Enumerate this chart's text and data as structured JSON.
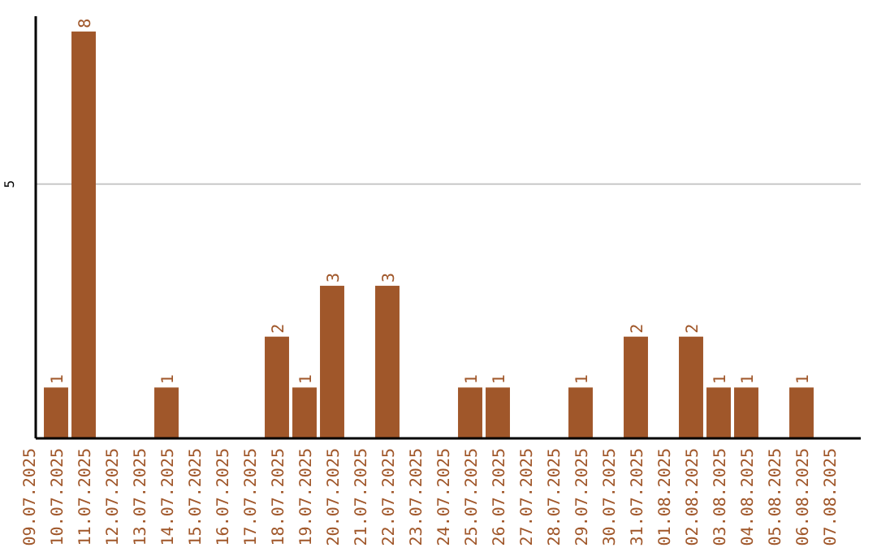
{
  "chart_data": {
    "type": "bar",
    "categories": [
      "09.07.2025",
      "10.07.2025",
      "11.07.2025",
      "12.07.2025",
      "13.07.2025",
      "14.07.2025",
      "15.07.2025",
      "16.07.2025",
      "17.07.2025",
      "18.07.2025",
      "19.07.2025",
      "20.07.2025",
      "21.07.2025",
      "22.07.2025",
      "23.07.2025",
      "24.07.2025",
      "25.07.2025",
      "26.07.2025",
      "27.07.2025",
      "28.07.2025",
      "29.07.2025",
      "30.07.2025",
      "31.07.2025",
      "01.08.2025",
      "02.08.2025",
      "03.08.2025",
      "04.08.2025",
      "05.08.2025",
      "06.08.2025",
      "07.08.2025"
    ],
    "values": [
      0,
      1,
      8,
      0,
      0,
      1,
      0,
      0,
      0,
      2,
      1,
      3,
      0,
      3,
      0,
      0,
      1,
      1,
      0,
      0,
      1,
      0,
      2,
      0,
      2,
      1,
      1,
      0,
      1,
      0
    ],
    "value_labels": [
      null,
      "1",
      "8",
      null,
      null,
      "1",
      null,
      null,
      null,
      "2",
      "1",
      "3",
      null,
      "3",
      null,
      null,
      "1",
      "1",
      null,
      null,
      "1",
      null,
      "2",
      null,
      "2",
      "1",
      "1",
      null,
      "1",
      null
    ],
    "color": "#a0572a",
    "ylim": [
      0,
      8.3
    ],
    "yticks": [
      5
    ],
    "grid": "y"
  }
}
